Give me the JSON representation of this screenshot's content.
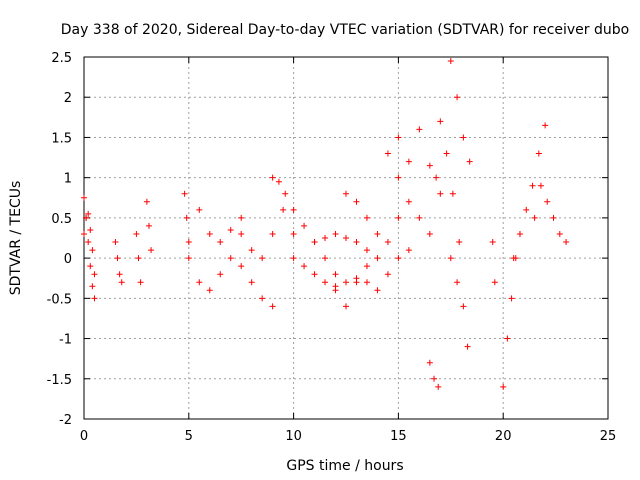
{
  "chart_data": {
    "type": "scatter",
    "title": "Day 338 of 2020, Sidereal Day-to-day VTEC variation (SDTVAR) for receiver dubo",
    "xlabel": "GPS time / hours",
    "ylabel": "SDTVAR / TECUs",
    "xlim": [
      0,
      25
    ],
    "ylim": [
      -2,
      2.5
    ],
    "xticks": [
      "0",
      "5",
      "10",
      "15",
      "20",
      "25"
    ],
    "yticks": [
      "-2",
      "-1.5",
      "-1",
      "-0.5",
      "0",
      "0.5",
      "1",
      "1.5",
      "2",
      "2.5"
    ],
    "grid": true,
    "marker": "+",
    "color": "#ff0000",
    "series": [
      {
        "name": "arc-0",
        "x": [
          0.0,
          0.1,
          0.2,
          0.3,
          0.4,
          0.5
        ],
        "y": [
          0.75,
          0.5,
          0.2,
          -0.1,
          -0.35,
          -0.5
        ]
      },
      {
        "name": "arc-1",
        "x": [
          0.0,
          0.1,
          0.2,
          0.3,
          0.4,
          0.5
        ],
        "y": [
          0.3,
          0.5,
          0.55,
          0.35,
          0.1,
          -0.2
        ]
      },
      {
        "name": "arc-2",
        "x": [
          1.5,
          1.6,
          1.7,
          1.8
        ],
        "y": [
          0.2,
          0.0,
          -0.2,
          -0.3
        ]
      },
      {
        "name": "arc-3",
        "x": [
          2.5,
          2.6,
          2.7
        ],
        "y": [
          0.3,
          0.0,
          -0.3
        ]
      },
      {
        "name": "arc-4",
        "x": [
          3.0,
          3.1,
          3.2
        ],
        "y": [
          0.7,
          0.4,
          0.1
        ]
      },
      {
        "name": "arc-5",
        "x": [
          4.8,
          4.9,
          5.0
        ],
        "y": [
          0.8,
          0.5,
          0.2
        ]
      },
      {
        "name": "arc-6",
        "x": [
          5.0,
          5.5,
          6.0,
          6.5,
          7.0,
          7.5,
          8.0,
          8.5,
          9.0
        ],
        "y": [
          0.0,
          -0.3,
          -0.4,
          -0.2,
          0.0,
          -0.1,
          -0.3,
          -0.5,
          -0.6
        ]
      },
      {
        "name": "arc-7",
        "x": [
          5.5,
          6.0,
          6.5,
          7.0,
          7.5
        ],
        "y": [
          0.6,
          0.3,
          0.2,
          0.35,
          0.5
        ]
      },
      {
        "name": "arc-8",
        "x": [
          7.5,
          8.0,
          8.5,
          9.0,
          9.5,
          10.0
        ],
        "y": [
          0.3,
          0.1,
          0.0,
          0.3,
          0.6,
          0.3
        ]
      },
      {
        "name": "arc-9",
        "x": [
          9.0,
          9.3,
          9.6
        ],
        "y": [
          1.0,
          0.95,
          0.8
        ]
      },
      {
        "name": "arc-10",
        "x": [
          10.0,
          10.5,
          11.0,
          11.5,
          12.0,
          12.5,
          13.0
        ],
        "y": [
          0.6,
          0.4,
          0.2,
          0.0,
          -0.2,
          -0.3,
          -0.25
        ]
      },
      {
        "name": "arc-11",
        "x": [
          10.0,
          10.5,
          11.0,
          11.5,
          12.0
        ],
        "y": [
          0.0,
          -0.1,
          -0.2,
          -0.3,
          -0.35
        ]
      },
      {
        "name": "arc-12",
        "x": [
          12.0,
          12.5,
          13.0,
          13.5,
          14.0
        ],
        "y": [
          -0.4,
          -0.6,
          -0.3,
          -0.1,
          0.0
        ]
      },
      {
        "name": "arc-13",
        "x": [
          11.0,
          11.5,
          12.0,
          12.5,
          13.0,
          13.5
        ],
        "y": [
          0.2,
          0.25,
          0.3,
          0.25,
          0.2,
          0.1
        ]
      },
      {
        "name": "arc-14",
        "x": [
          12.5,
          13.0,
          13.5,
          14.0,
          14.5,
          15.0
        ],
        "y": [
          0.8,
          0.7,
          0.5,
          0.3,
          0.2,
          0.5
        ]
      },
      {
        "name": "arc-15",
        "x": [
          13.5,
          14.0,
          14.5,
          15.0,
          15.5
        ],
        "y": [
          -0.3,
          -0.4,
          -0.2,
          0.0,
          0.1
        ]
      },
      {
        "name": "arc-16",
        "x": [
          14.5,
          15.0,
          15.5,
          16.0,
          16.5
        ],
        "y": [
          1.3,
          1.0,
          0.7,
          0.5,
          0.3
        ]
      },
      {
        "name": "arc-17",
        "x": [
          15.0,
          15.5,
          16.0
        ],
        "y": [
          1.5,
          1.2,
          1.6
        ]
      },
      {
        "name": "arc-18",
        "x": [
          16.5,
          16.7,
          16.9
        ],
        "y": [
          -1.3,
          -1.5,
          -1.6
        ]
      },
      {
        "name": "arc-19",
        "x": [
          16.5,
          16.8,
          17.0
        ],
        "y": [
          1.15,
          1.0,
          0.8
        ]
      },
      {
        "name": "arc-20",
        "x": [
          17.0,
          17.3,
          17.6,
          17.9
        ],
        "y": [
          1.7,
          1.3,
          0.8,
          0.2
        ]
      },
      {
        "name": "arc-21",
        "x": [
          17.5,
          17.8,
          18.1,
          18.4
        ],
        "y": [
          2.45,
          2.0,
          1.5,
          1.2
        ]
      },
      {
        "name": "arc-22",
        "x": [
          17.5,
          17.8,
          18.1,
          18.3
        ],
        "y": [
          0.0,
          -0.3,
          -0.6,
          -1.1
        ]
      },
      {
        "name": "arc-23",
        "x": [
          19.5,
          19.6
        ],
        "y": [
          0.2,
          -0.3
        ]
      },
      {
        "name": "arc-24",
        "x": [
          20.0,
          20.2,
          20.4,
          20.6,
          20.8
        ],
        "y": [
          -1.6,
          -1.0,
          -0.5,
          0.0,
          0.3
        ]
      },
      {
        "name": "arc-25",
        "x": [
          20.5,
          20.8,
          21.1,
          21.4,
          21.7,
          22.0
        ],
        "y": [
          0.0,
          0.3,
          0.6,
          0.9,
          1.3,
          1.65
        ]
      },
      {
        "name": "arc-26",
        "x": [
          21.5,
          21.8,
          22.1,
          22.4,
          22.7,
          23.0
        ],
        "y": [
          0.5,
          0.9,
          0.7,
          0.5,
          0.3,
          0.2
        ]
      }
    ]
  }
}
